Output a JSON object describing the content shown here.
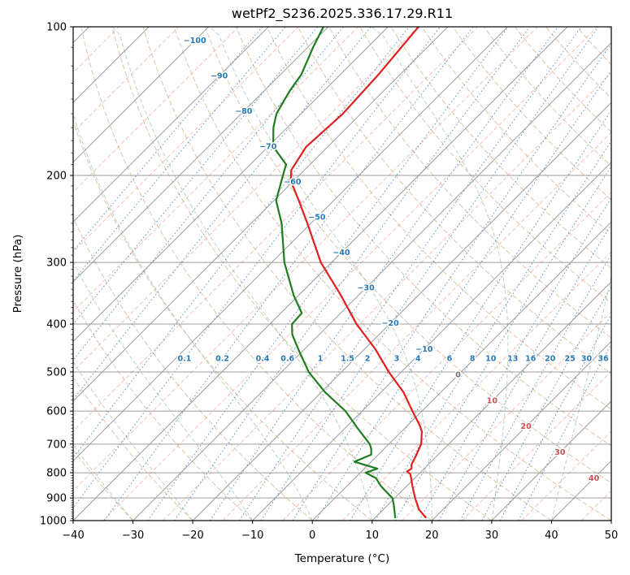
{
  "title": "wetPf2_S236.2025.336.17.29.R11",
  "axes": {
    "x": {
      "label": "Temperature (°C)",
      "ticks": [
        -40,
        -30,
        -20,
        -10,
        0,
        10,
        20,
        30,
        40,
        50
      ]
    },
    "y": {
      "label": "Pressure (hPa)",
      "scale": "log",
      "ticks": [
        100,
        200,
        300,
        400,
        500,
        600,
        700,
        800,
        900,
        1000
      ]
    }
  },
  "palette": {
    "temperature": "#e02020",
    "dewpoint": "#1f7d1f",
    "isotherm": "#9c9c9c",
    "isotherm_minor": "#ef8a80",
    "dry_adiabat": "#c2a06b",
    "moist_adiabat": "#7fb589",
    "mixing_ratio": "#3079b6",
    "label_blue": "#2878b4",
    "label_red": "#c35050",
    "label_gray": "#707070",
    "frame": "#000000"
  },
  "chart_data": {
    "type": "line",
    "variant": "skew-t-log-p",
    "title": "wetPf2_S236.2025.336.17.29.R11",
    "xlabel": "Temperature (°C)",
    "ylabel": "Pressure (hPa)",
    "xlim": [
      -40,
      50
    ],
    "ylim": [
      1000,
      100
    ],
    "skew": "45deg",
    "grid_on": true,
    "legend": "none",
    "grid": {
      "isotherm_step_c": 10,
      "isotherm_minor_step_c": 5,
      "dry_adiabats_theta_c": {
        "start": -40,
        "end": 210,
        "step": 10
      },
      "moist_adiabats_t0_c": {
        "start": -40,
        "end": 60,
        "step": 10
      },
      "mixing_ratio_labeled_g_kg": [
        0.1,
        0.2,
        0.4,
        0.6,
        1,
        1.5,
        2,
        3,
        4,
        6,
        8,
        10,
        13,
        16,
        20,
        25,
        30,
        36
      ],
      "mixing_ratio_unlabeled_g_kg": [
        0.001,
        0.002,
        0.005,
        0.01,
        0.02,
        0.05
      ],
      "mixing_ratio_label_pressure_hpa": 470
    },
    "isotherm_labels": [
      {
        "value": -100,
        "color": "blue"
      },
      {
        "value": -90,
        "color": "blue"
      },
      {
        "value": -80,
        "color": "blue"
      },
      {
        "value": -70,
        "color": "blue"
      },
      {
        "value": -60,
        "color": "blue"
      },
      {
        "value": -50,
        "color": "blue"
      },
      {
        "value": -40,
        "color": "blue"
      },
      {
        "value": -30,
        "color": "blue"
      },
      {
        "value": -20,
        "color": "blue"
      },
      {
        "value": -10,
        "color": "blue"
      },
      {
        "value": 0,
        "color": "gray"
      },
      {
        "value": 10,
        "color": "red"
      },
      {
        "value": 20,
        "color": "red"
      },
      {
        "value": 30,
        "color": "red"
      },
      {
        "value": 40,
        "color": "red"
      }
    ],
    "series": [
      {
        "name": "temperature",
        "color_key": "temperature",
        "pressure_hpa": [
          985,
          950,
          900,
          850,
          820,
          805,
          795,
          785,
          770,
          740,
          700,
          660,
          640,
          600,
          550,
          500,
          450,
          400,
          350,
          300,
          250,
          225,
          205,
          195,
          175,
          150,
          125,
          100
        ],
        "temperature_c": [
          18.4,
          16.0,
          13.4,
          10.9,
          9.4,
          8.6,
          7.6,
          7.9,
          7.2,
          6.5,
          5.4,
          3.4,
          1.9,
          -1.6,
          -6.2,
          -12.1,
          -18.1,
          -25.5,
          -32.9,
          -41.8,
          -50.6,
          -55.8,
          -60.5,
          -62.2,
          -63.6,
          -63.0,
          -63.6,
          -64.9
        ]
      },
      {
        "name": "dewpoint",
        "color_key": "dewpoint",
        "pressure_hpa": [
          985,
          960,
          925,
          900,
          870,
          850,
          820,
          800,
          785,
          760,
          735,
          715,
          700,
          650,
          600,
          550,
          500,
          450,
          420,
          400,
          380,
          350,
          300,
          250,
          225,
          200,
          190,
          175,
          160,
          150,
          135,
          125,
          110,
          100
        ],
        "temperature_c": [
          13.3,
          12.3,
          10.8,
          9.6,
          7.2,
          5.6,
          3.5,
          0.9,
          2.2,
          -2.8,
          -1.2,
          -2.2,
          -3.2,
          -7.9,
          -12.8,
          -19.3,
          -25.5,
          -31.0,
          -34.5,
          -36.3,
          -36.5,
          -40.8,
          -47.9,
          -54.9,
          -59.6,
          -62.7,
          -64.0,
          -69.1,
          -72.3,
          -74.1,
          -75.7,
          -76.5,
          -79.1,
          -80.8
        ]
      }
    ]
  }
}
